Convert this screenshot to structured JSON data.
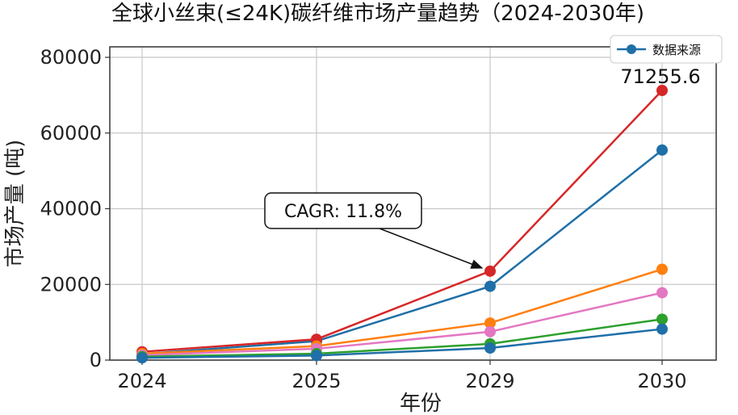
{
  "chart_data": {
    "type": "line",
    "title": "全球小丝束(≤24K)碳纤维市场产量趋势（2024-2030年)",
    "xlabel": "年份",
    "ylabel": "市场产量 (吨)",
    "categories": [
      "2024",
      "2025",
      "2029",
      "2030"
    ],
    "ylim": [
      0,
      80000
    ],
    "yticks": [
      "0",
      "20000",
      "40000",
      "60000",
      "80000"
    ],
    "grid": true,
    "legend": {
      "placement": "top-right",
      "entries": [
        "数据来源"
      ]
    },
    "series": [
      {
        "name": "数据来源",
        "color": "#1f6fa8",
        "values": [
          1600,
          5000,
          19500,
          55500
        ]
      },
      {
        "color": "#d62728",
        "values": [
          2200,
          5500,
          23500,
          71255.6
        ]
      },
      {
        "color": "#ff7f0e",
        "values": [
          1700,
          3700,
          9800,
          24000
        ]
      },
      {
        "color": "#e377c2",
        "values": [
          1300,
          3000,
          7500,
          17800
        ]
      },
      {
        "color": "#2ca02c",
        "values": [
          900,
          1700,
          4300,
          10800
        ]
      },
      {
        "color": "#1f6fa8",
        "values": [
          600,
          1200,
          3200,
          8200
        ]
      }
    ],
    "data_labels": [
      {
        "text": "71255.6"
      }
    ],
    "annotations": [
      {
        "text": "CAGR: 11.8%"
      }
    ]
  }
}
